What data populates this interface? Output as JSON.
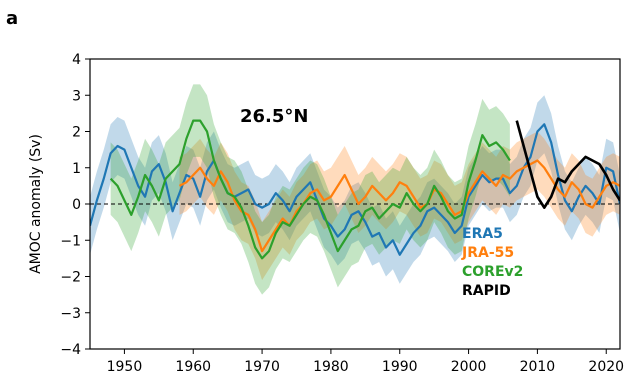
{
  "panel_label": "a",
  "chart_data": {
    "type": "line",
    "title": "",
    "annotation": "26.5°N",
    "xlabel": "",
    "ylabel": "AMOC anomaly (Sv)",
    "xlim": [
      1945,
      2022
    ],
    "ylim": [
      -4,
      4
    ],
    "xticks": [
      1950,
      1960,
      1970,
      1980,
      1990,
      2000,
      2010,
      2020
    ],
    "yticks": [
      4,
      3,
      2,
      1,
      0,
      -1,
      -2,
      -3,
      -4
    ],
    "zero_line": "dashed",
    "legend": {
      "placement": "lower-right",
      "style": "colored-text"
    },
    "series": [
      {
        "name": "ERA5",
        "color": "#1f77b4",
        "band_color": "#1f77b4",
        "x": [
          1945,
          1946,
          1947,
          1948,
          1949,
          1950,
          1951,
          1952,
          1953,
          1954,
          1955,
          1956,
          1957,
          1958,
          1959,
          1960,
          1961,
          1962,
          1963,
          1964,
          1965,
          1966,
          1967,
          1968,
          1969,
          1970,
          1971,
          1972,
          1973,
          1974,
          1975,
          1976,
          1977,
          1978,
          1979,
          1980,
          1981,
          1982,
          1983,
          1984,
          1985,
          1986,
          1987,
          1988,
          1989,
          1990,
          1991,
          1992,
          1993,
          1994,
          1995,
          1996,
          1997,
          1998,
          1999,
          2000,
          2001,
          2002,
          2003,
          2004,
          2005,
          2006,
          2007,
          2008,
          2009,
          2010,
          2011,
          2012,
          2013,
          2014,
          2015,
          2016,
          2017,
          2018,
          2019,
          2020,
          2021,
          2022
        ],
        "y": [
          -0.6,
          0.1,
          0.7,
          1.4,
          1.6,
          1.5,
          1.0,
          0.5,
          0.2,
          0.9,
          1.1,
          0.6,
          -0.2,
          0.3,
          0.8,
          0.7,
          0.2,
          0.9,
          1.2,
          0.7,
          0.3,
          0.2,
          0.3,
          0.4,
          0.0,
          -0.1,
          0.0,
          0.3,
          0.1,
          -0.2,
          0.2,
          0.4,
          0.6,
          0.1,
          -0.4,
          -0.6,
          -0.9,
          -0.7,
          -0.3,
          -0.2,
          -0.5,
          -0.9,
          -0.8,
          -1.2,
          -1.0,
          -1.4,
          -1.1,
          -0.8,
          -0.6,
          -0.2,
          -0.1,
          -0.3,
          -0.5,
          -0.8,
          -0.6,
          0.2,
          0.5,
          0.8,
          0.6,
          0.7,
          0.7,
          0.3,
          0.5,
          1.0,
          1.3,
          2.0,
          2.2,
          1.7,
          0.8,
          0.1,
          -0.2,
          0.2,
          0.5,
          0.3,
          0.0,
          1.0,
          0.9,
          0.0
        ],
        "lower": [
          -1.4,
          -0.7,
          -0.1,
          0.6,
          0.8,
          0.7,
          0.2,
          -0.3,
          -0.6,
          0.1,
          0.3,
          -0.2,
          -1.0,
          -0.5,
          0.0,
          -0.1,
          -0.6,
          0.1,
          0.4,
          -0.1,
          -0.5,
          -0.6,
          -0.5,
          -0.4,
          -0.8,
          -0.9,
          -0.8,
          -0.5,
          -0.7,
          -1.0,
          -0.6,
          -0.4,
          -0.2,
          -0.7,
          -1.2,
          -1.4,
          -1.7,
          -1.5,
          -1.1,
          -1.0,
          -1.3,
          -1.7,
          -1.6,
          -2.0,
          -1.8,
          -2.2,
          -1.9,
          -1.6,
          -1.4,
          -1.0,
          -0.9,
          -1.1,
          -1.3,
          -1.6,
          -1.4,
          -0.6,
          -0.3,
          0.0,
          -0.2,
          -0.1,
          -0.1,
          -0.5,
          -0.3,
          0.2,
          0.5,
          1.2,
          1.4,
          0.9,
          0.0,
          -0.7,
          -1.0,
          -0.6,
          -0.3,
          -0.5,
          -0.8,
          0.2,
          0.1,
          -0.8
        ],
        "upper": [
          0.2,
          0.9,
          1.5,
          2.2,
          2.4,
          2.3,
          1.8,
          1.3,
          1.0,
          1.7,
          1.9,
          1.4,
          0.6,
          1.1,
          1.6,
          1.5,
          1.0,
          1.7,
          2.0,
          1.5,
          1.1,
          1.0,
          1.1,
          1.2,
          0.8,
          0.7,
          0.8,
          1.1,
          0.9,
          0.6,
          1.0,
          1.2,
          1.4,
          0.9,
          0.4,
          0.2,
          -0.1,
          0.1,
          0.5,
          0.6,
          0.3,
          -0.1,
          0.0,
          -0.4,
          -0.2,
          -0.6,
          -0.3,
          0.0,
          0.2,
          0.6,
          0.7,
          0.5,
          0.3,
          0.0,
          0.2,
          1.0,
          1.3,
          1.6,
          1.4,
          1.5,
          1.5,
          1.1,
          1.3,
          1.8,
          2.1,
          2.8,
          3.0,
          2.5,
          1.6,
          0.9,
          0.6,
          1.0,
          1.3,
          1.1,
          0.8,
          1.8,
          1.7,
          0.8
        ]
      },
      {
        "name": "JRA-55",
        "color": "#ff7f0e",
        "band_color": "#ff7f0e",
        "x": [
          1958,
          1959,
          1960,
          1961,
          1962,
          1963,
          1964,
          1965,
          1966,
          1967,
          1968,
          1969,
          1970,
          1971,
          1972,
          1973,
          1974,
          1975,
          1976,
          1977,
          1978,
          1979,
          1980,
          1981,
          1982,
          1983,
          1984,
          1985,
          1986,
          1987,
          1988,
          1989,
          1990,
          1991,
          1992,
          1993,
          1994,
          1995,
          1996,
          1997,
          1998,
          1999,
          2000,
          2001,
          2002,
          2003,
          2004,
          2005,
          2006,
          2007,
          2008,
          2009,
          2010,
          2011,
          2012,
          2013,
          2014,
          2015,
          2016,
          2017,
          2018,
          2019,
          2020,
          2021,
          2022
        ],
        "y": [
          0.5,
          0.6,
          0.8,
          1.0,
          0.7,
          0.5,
          0.9,
          0.6,
          0.1,
          -0.2,
          -0.3,
          -0.7,
          -1.3,
          -1.0,
          -0.7,
          -0.4,
          -0.6,
          -0.2,
          0.0,
          0.3,
          0.4,
          0.1,
          0.2,
          0.5,
          0.8,
          0.4,
          0.0,
          0.2,
          0.5,
          0.3,
          0.1,
          0.3,
          0.6,
          0.5,
          0.2,
          -0.1,
          0.0,
          0.4,
          0.3,
          0.0,
          -0.3,
          -0.2,
          0.3,
          0.6,
          0.9,
          0.7,
          0.5,
          0.8,
          0.7,
          0.9,
          1.0,
          1.1,
          1.2,
          1.0,
          0.7,
          0.4,
          0.2,
          0.6,
          0.4,
          0.0,
          -0.1,
          0.2,
          0.5,
          0.6,
          0.5
        ],
        "lower": [
          -0.3,
          -0.2,
          0.0,
          0.2,
          -0.1,
          -0.3,
          0.1,
          -0.2,
          -0.7,
          -1.0,
          -1.1,
          -1.5,
          -2.1,
          -1.8,
          -1.5,
          -1.2,
          -1.4,
          -1.0,
          -0.8,
          -0.5,
          -0.4,
          -0.7,
          -0.6,
          -0.3,
          0.0,
          -0.4,
          -0.8,
          -0.6,
          -0.3,
          -0.5,
          -0.7,
          -0.5,
          -0.2,
          -0.3,
          -0.6,
          -0.9,
          -0.8,
          -0.4,
          -0.5,
          -0.8,
          -1.1,
          -1.0,
          -0.5,
          -0.2,
          0.1,
          -0.1,
          -0.3,
          0.0,
          -0.1,
          0.1,
          0.2,
          0.3,
          0.4,
          0.2,
          -0.1,
          -0.4,
          -0.6,
          -0.2,
          -0.4,
          -0.8,
          -0.9,
          -0.6,
          -0.3,
          -0.2,
          -0.3
        ],
        "upper": [
          1.3,
          1.4,
          1.6,
          1.8,
          1.5,
          1.3,
          1.7,
          1.4,
          0.9,
          0.6,
          0.5,
          0.1,
          -0.5,
          -0.2,
          0.1,
          0.4,
          0.2,
          0.6,
          0.8,
          1.1,
          1.2,
          0.9,
          1.0,
          1.3,
          1.6,
          1.2,
          0.8,
          1.0,
          1.3,
          1.1,
          0.9,
          1.1,
          1.4,
          1.3,
          1.0,
          0.7,
          0.8,
          1.2,
          1.1,
          0.8,
          0.5,
          0.6,
          1.1,
          1.4,
          1.7,
          1.5,
          1.3,
          1.6,
          1.5,
          1.7,
          1.8,
          1.9,
          2.0,
          1.8,
          1.5,
          1.2,
          1.0,
          1.4,
          1.2,
          0.8,
          0.7,
          1.0,
          1.3,
          1.4,
          1.3
        ]
      },
      {
        "name": "COREv2",
        "color": "#2ca02c",
        "band_color": "#2ca02c",
        "x": [
          1948,
          1949,
          1950,
          1951,
          1952,
          1953,
          1954,
          1955,
          1956,
          1957,
          1958,
          1959,
          1960,
          1961,
          1962,
          1963,
          1964,
          1965,
          1966,
          1967,
          1968,
          1969,
          1970,
          1971,
          1972,
          1973,
          1974,
          1975,
          1976,
          1977,
          1978,
          1979,
          1980,
          1981,
          1982,
          1983,
          1984,
          1985,
          1986,
          1987,
          1988,
          1989,
          1990,
          1991,
          1992,
          1993,
          1994,
          1995,
          1996,
          1997,
          1998,
          1999,
          2000,
          2001,
          2002,
          2003,
          2004,
          2005,
          2006
        ],
        "y": [
          0.7,
          0.5,
          0.1,
          -0.3,
          0.2,
          0.8,
          0.5,
          0.1,
          0.7,
          0.9,
          1.1,
          1.8,
          2.3,
          2.3,
          2.0,
          1.2,
          0.7,
          0.3,
          0.2,
          -0.1,
          -0.6,
          -1.2,
          -1.5,
          -1.3,
          -0.8,
          -0.5,
          -0.6,
          -0.3,
          0.0,
          0.2,
          0.1,
          -0.3,
          -0.8,
          -1.3,
          -1.0,
          -0.7,
          -0.6,
          -0.2,
          -0.1,
          -0.4,
          -0.2,
          0.0,
          -0.1,
          0.3,
          0.0,
          -0.2,
          0.0,
          0.5,
          0.2,
          -0.2,
          -0.4,
          -0.3,
          0.6,
          1.2,
          1.9,
          1.6,
          1.7,
          1.5,
          1.2
        ],
        "lower": [
          -0.3,
          -0.5,
          -0.9,
          -1.3,
          -0.8,
          -0.2,
          -0.5,
          -0.9,
          -0.3,
          -0.1,
          0.1,
          0.8,
          1.3,
          1.3,
          1.0,
          0.2,
          -0.3,
          -0.7,
          -0.8,
          -1.1,
          -1.6,
          -2.2,
          -2.5,
          -2.3,
          -1.8,
          -1.5,
          -1.6,
          -1.3,
          -1.0,
          -0.8,
          -0.9,
          -1.3,
          -1.8,
          -2.3,
          -2.0,
          -1.7,
          -1.6,
          -1.2,
          -1.1,
          -1.4,
          -1.2,
          -1.0,
          -1.1,
          -0.7,
          -1.0,
          -1.2,
          -1.0,
          -0.5,
          -0.8,
          -1.2,
          -1.4,
          -1.3,
          -0.4,
          0.2,
          0.9,
          0.6,
          0.7,
          0.5,
          0.2
        ],
        "upper": [
          1.7,
          1.5,
          1.1,
          0.7,
          1.2,
          1.8,
          1.5,
          1.1,
          1.7,
          1.9,
          2.1,
          2.8,
          3.3,
          3.3,
          3.0,
          2.2,
          1.7,
          1.3,
          1.2,
          0.9,
          0.4,
          -0.2,
          -0.5,
          -0.3,
          0.2,
          0.5,
          0.4,
          0.7,
          1.0,
          1.2,
          1.1,
          0.7,
          0.2,
          -0.3,
          0.0,
          0.3,
          0.4,
          0.8,
          0.9,
          0.6,
          0.8,
          1.0,
          0.9,
          1.3,
          1.0,
          0.8,
          1.0,
          1.5,
          1.2,
          0.8,
          0.6,
          0.7,
          1.6,
          2.2,
          2.9,
          2.6,
          2.7,
          2.5,
          2.2
        ]
      },
      {
        "name": "RAPID",
        "color": "#000000",
        "x": [
          2007,
          2008,
          2009,
          2010,
          2011,
          2012,
          2013,
          2014,
          2015,
          2016,
          2017,
          2018,
          2019,
          2020,
          2021,
          2022
        ],
        "y": [
          2.3,
          1.6,
          0.9,
          0.2,
          -0.1,
          0.2,
          0.7,
          0.6,
          0.9,
          1.1,
          1.3,
          1.2,
          1.1,
          0.8,
          0.4,
          0.1
        ]
      }
    ]
  }
}
